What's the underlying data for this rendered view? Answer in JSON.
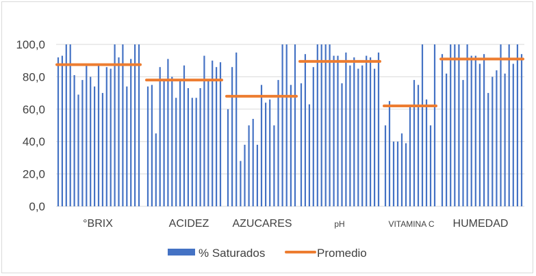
{
  "chart_data": {
    "type": "bar",
    "title": "",
    "xlabel": "",
    "ylabel": "",
    "ylim": [
      0,
      100
    ],
    "yticks": [
      "0,0",
      "20,0",
      "40,0",
      "60,0",
      "80,0",
      "100,0"
    ],
    "grid": true,
    "legend_position": "bottom",
    "colors": {
      "bars": "#4472c4",
      "average": "#ed7d31",
      "grid": "#d9d9d9"
    },
    "categories": [
      "°BRIX",
      "ACIDEZ",
      "AZUCARES",
      "pH",
      "VITAMINA C",
      "HUMEDAD"
    ],
    "series": [
      {
        "name": "% Saturados",
        "type": "bar",
        "groups": [
          [
            92,
            93,
            100,
            100,
            81,
            69,
            78,
            87,
            80,
            74,
            87,
            70,
            86,
            85,
            100,
            92,
            100,
            74,
            91,
            100,
            100
          ],
          [
            74,
            75,
            45,
            86,
            78,
            91,
            80,
            67,
            78,
            87,
            73,
            67,
            67,
            73,
            93,
            78,
            90,
            86,
            89
          ],
          [
            60,
            86,
            95,
            28,
            38,
            50,
            54,
            38,
            75,
            64,
            66,
            50,
            78,
            100,
            100,
            75,
            100
          ],
          [
            76,
            94,
            63,
            86,
            100,
            100,
            100,
            100,
            93,
            93,
            76,
            95,
            87,
            92,
            85,
            87,
            93,
            92,
            85,
            95
          ],
          [
            50,
            65,
            40,
            40,
            45,
            39,
            62,
            78,
            75,
            100,
            66,
            50,
            100
          ],
          [
            94,
            82,
            100,
            100,
            100,
            78,
            100,
            93,
            93,
            88,
            94,
            70,
            80,
            84,
            100,
            82,
            100,
            88,
            100,
            94
          ]
        ]
      },
      {
        "name": "Promedio",
        "type": "line",
        "values": [
          87.5,
          78,
          68,
          89.5,
          62,
          91
        ]
      }
    ]
  }
}
